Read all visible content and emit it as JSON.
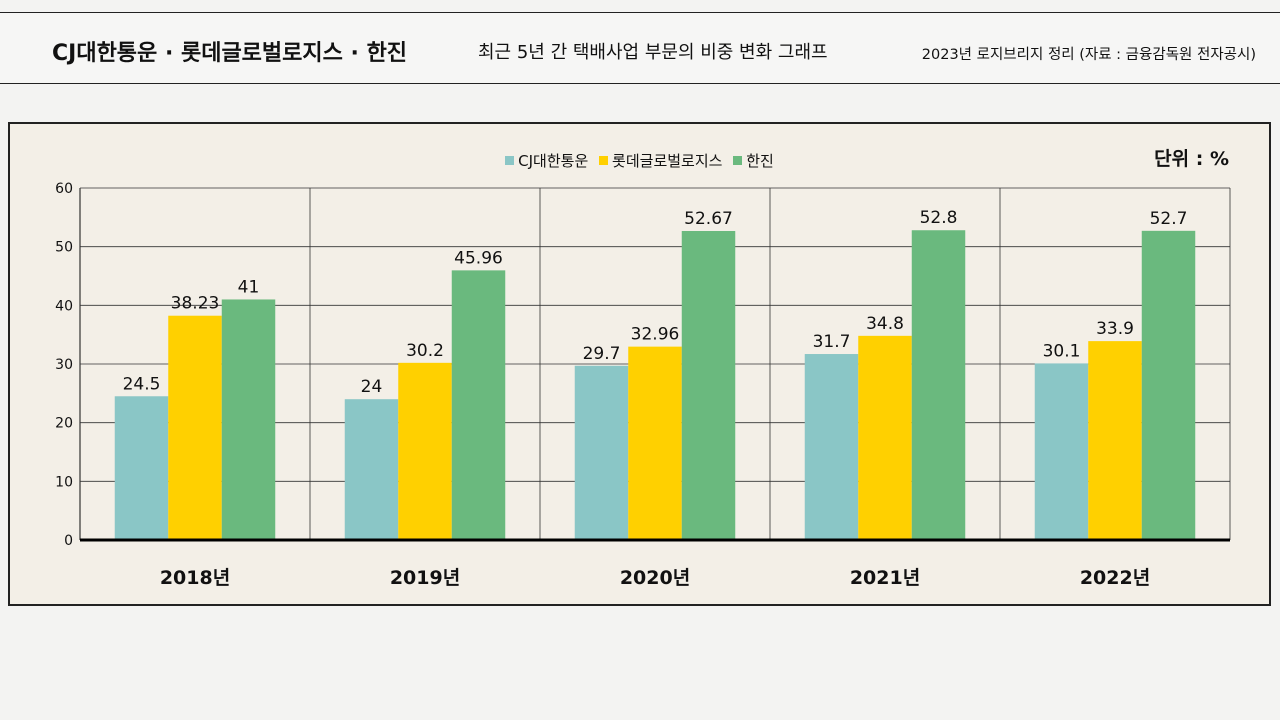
{
  "header": {
    "title": "CJ대한통운 · 롯데글로벌로지스 · 한진",
    "subtitle": "최근 5년 간 택배사업 부문의 비중 변화 그래프",
    "source": "2023년 로지브리지 정리 (자료 : 금융감독원 전자공시)"
  },
  "chart_data": {
    "type": "bar",
    "title": "최근 5년 간 택배사업 부문의 비중 변화 그래프",
    "unit_label": "단위 : %",
    "categories": [
      "2018년",
      "2019년",
      "2020년",
      "2021년",
      "2022년"
    ],
    "series": [
      {
        "name": "CJ대한통운",
        "color": "#8ac6c6",
        "values": [
          24.5,
          24,
          29.7,
          31.7,
          30.1
        ],
        "labels": [
          "24.5",
          "24",
          "29.7",
          "31.7",
          "30.1"
        ]
      },
      {
        "name": "롯데글로벌로지스",
        "color": "#ffd000",
        "values": [
          38.23,
          30.2,
          32.96,
          34.8,
          33.9
        ],
        "labels": [
          "38.23",
          "30.2",
          "32.96",
          "34.8",
          "33.9"
        ]
      },
      {
        "name": "한진",
        "color": "#6ab97e",
        "values": [
          41,
          45.96,
          52.67,
          52.8,
          52.7
        ],
        "labels": [
          "41",
          "45.96",
          "52.67",
          "52.8",
          "52.7"
        ]
      }
    ],
    "ylim": [
      0,
      60
    ],
    "yticks": [
      "0",
      "10",
      "20",
      "30",
      "40",
      "50",
      "60"
    ],
    "grid": true,
    "legend_position": "top-center"
  }
}
